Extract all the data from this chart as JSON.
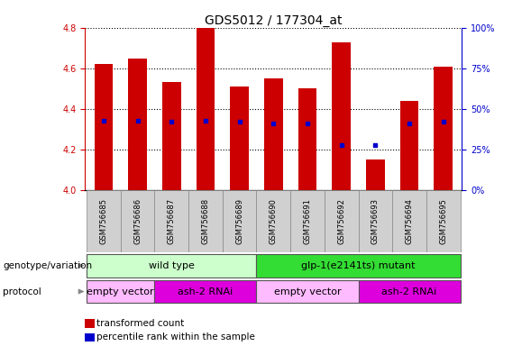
{
  "title": "GDS5012 / 177304_at",
  "samples": [
    "GSM756685",
    "GSM756686",
    "GSM756687",
    "GSM756688",
    "GSM756689",
    "GSM756690",
    "GSM756691",
    "GSM756692",
    "GSM756693",
    "GSM756694",
    "GSM756695"
  ],
  "transformed_count": [
    4.62,
    4.65,
    4.535,
    4.8,
    4.51,
    4.55,
    4.5,
    4.73,
    4.15,
    4.44,
    4.61
  ],
  "percentile_rank": [
    43,
    43,
    42,
    43,
    42,
    41,
    41,
    28,
    28,
    41,
    42
  ],
  "ylim": [
    4.0,
    4.8
  ],
  "yticks": [
    4.0,
    4.2,
    4.4,
    4.6,
    4.8
  ],
  "right_yticks": [
    0,
    25,
    50,
    75,
    100
  ],
  "bar_color": "#cc0000",
  "dot_color": "#0000cc",
  "genotype_groups": [
    {
      "label": "wild type",
      "start": 0,
      "end": 5,
      "color": "#ccffcc"
    },
    {
      "label": "glp-1(e2141ts) mutant",
      "start": 5,
      "end": 11,
      "color": "#33dd33"
    }
  ],
  "protocol_groups": [
    {
      "label": "empty vector",
      "start": 0,
      "end": 2,
      "color": "#ffbbff"
    },
    {
      "label": "ash-2 RNAi",
      "start": 2,
      "end": 5,
      "color": "#dd00dd"
    },
    {
      "label": "empty vector",
      "start": 5,
      "end": 8,
      "color": "#ffbbff"
    },
    {
      "label": "ash-2 RNAi",
      "start": 8,
      "end": 11,
      "color": "#dd00dd"
    }
  ],
  "left_axis_color": "#cc0000",
  "right_axis_color": "#0000cc",
  "title_fontsize": 10,
  "tick_fontsize": 7,
  "label_fontsize": 7.5,
  "row_fontsize": 8,
  "legend_fontsize": 7.5,
  "sample_fontsize": 6
}
